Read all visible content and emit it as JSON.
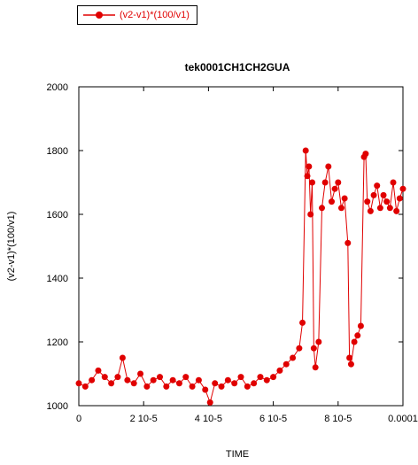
{
  "chart_data": {
    "type": "line",
    "title": "tek0001CH1CH2GUA",
    "xlabel": "TIME",
    "ylabel": "(v2-v1)*(100/v1)",
    "xlim": [
      0,
      0.0001
    ],
    "ylim": [
      1000,
      2000
    ],
    "x_ticks": [
      {
        "value": 0,
        "label": "0"
      },
      {
        "value": 2e-05,
        "label": "2 10-5"
      },
      {
        "value": 4e-05,
        "label": "4 10-5"
      },
      {
        "value": 6e-05,
        "label": "6 10-5"
      },
      {
        "value": 8e-05,
        "label": "8 10-5"
      },
      {
        "value": 0.0001,
        "label": "0.0001"
      }
    ],
    "y_ticks": [
      {
        "value": 1000,
        "label": "1000"
      },
      {
        "value": 1200,
        "label": "1200"
      },
      {
        "value": 1400,
        "label": "1400"
      },
      {
        "value": 1600,
        "label": "1600"
      },
      {
        "value": 1800,
        "label": "1800"
      },
      {
        "value": 2000,
        "label": "2000"
      }
    ],
    "legend_position": "top-left",
    "series": [
      {
        "name": "(v2-v1)*(100/v1)",
        "color": "#e00000",
        "marker": "filled-circle",
        "x": [
          0,
          2e-06,
          4e-06,
          6e-06,
          8e-06,
          1e-05,
          1.2e-05,
          1.35e-05,
          1.5e-05,
          1.7e-05,
          1.9e-05,
          2.1e-05,
          2.3e-05,
          2.5e-05,
          2.7e-05,
          2.9e-05,
          3.1e-05,
          3.3e-05,
          3.5e-05,
          3.7e-05,
          3.9e-05,
          4.05e-05,
          4.2e-05,
          4.4e-05,
          4.6e-05,
          4.8e-05,
          5e-05,
          5.2e-05,
          5.4e-05,
          5.6e-05,
          5.8e-05,
          6e-05,
          6.2e-05,
          6.4e-05,
          6.6e-05,
          6.8e-05,
          6.9e-05,
          7e-05,
          7.05e-05,
          7.1e-05,
          7.15e-05,
          7.2e-05,
          7.25e-05,
          7.3e-05,
          7.4e-05,
          7.5e-05,
          7.6e-05,
          7.7e-05,
          7.8e-05,
          7.9e-05,
          8e-05,
          8.1e-05,
          8.2e-05,
          8.3e-05,
          8.35e-05,
          8.4e-05,
          8.5e-05,
          8.6e-05,
          8.7e-05,
          8.8e-05,
          8.85e-05,
          8.9e-05,
          9e-05,
          9.1e-05,
          9.2e-05,
          9.3e-05,
          9.4e-05,
          9.5e-05,
          9.6e-05,
          9.7e-05,
          9.8e-05,
          9.9e-05,
          0.0001
        ],
        "y": [
          1070,
          1060,
          1080,
          1110,
          1090,
          1070,
          1090,
          1150,
          1080,
          1070,
          1100,
          1060,
          1080,
          1090,
          1060,
          1080,
          1070,
          1090,
          1060,
          1080,
          1050,
          1010,
          1070,
          1060,
          1080,
          1070,
          1090,
          1060,
          1070,
          1090,
          1080,
          1090,
          1110,
          1130,
          1150,
          1180,
          1260,
          1800,
          1720,
          1750,
          1600,
          1700,
          1180,
          1120,
          1200,
          1620,
          1700,
          1750,
          1640,
          1680,
          1700,
          1620,
          1650,
          1510,
          1150,
          1130,
          1200,
          1220,
          1250,
          1780,
          1790,
          1640,
          1610,
          1660,
          1690,
          1620,
          1660,
          1640,
          1620,
          1700,
          1610,
          1650,
          1680
        ]
      }
    ]
  }
}
